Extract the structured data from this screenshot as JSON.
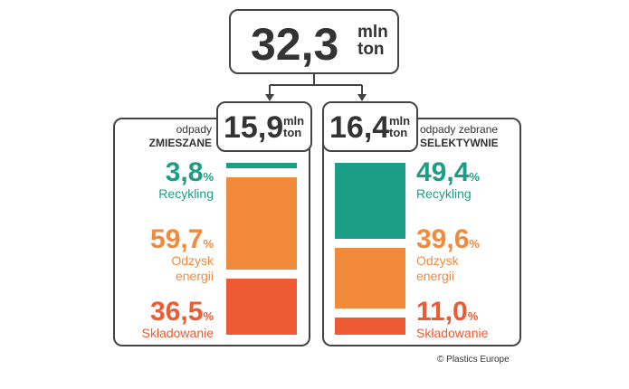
{
  "total": {
    "value": "32,3",
    "unit_lines": [
      "mln",
      "ton"
    ]
  },
  "chart_data": [
    {
      "type": "stacked-bar",
      "total": "15,9",
      "unit_lines": [
        "mln",
        "ton"
      ],
      "title_lines": [
        "odpady",
        "ZMIESZANE"
      ],
      "categories": [
        "Recykling",
        "Odzysk energii",
        "Składowanie"
      ],
      "values": [
        3.8,
        59.7,
        36.5
      ],
      "value_labels": [
        "3,8",
        "59,7",
        "36,5"
      ],
      "unit": "%",
      "colors": [
        "#1a9e86",
        "#f28a3c",
        "#ee5a33"
      ]
    },
    {
      "type": "stacked-bar",
      "total": "16,4",
      "unit_lines": [
        "mln",
        "ton"
      ],
      "title_lines": [
        "odpady zebrane",
        "SELEKTYWNIE"
      ],
      "categories": [
        "Recykling",
        "Odzysk energii",
        "Składowanie"
      ],
      "values": [
        49.4,
        39.6,
        11.0
      ],
      "value_labels": [
        "49,4",
        "39,6",
        "11,0"
      ],
      "unit": "%",
      "colors": [
        "#1a9e86",
        "#f28a3c",
        "#ee5a33"
      ]
    }
  ],
  "source": "© Plastics Europe"
}
